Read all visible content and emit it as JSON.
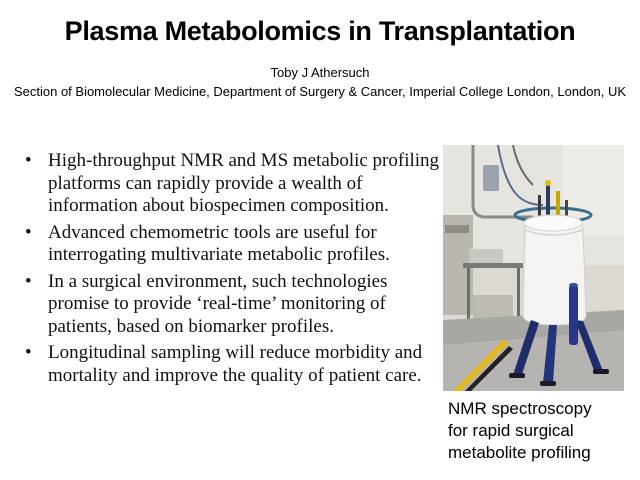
{
  "slide": {
    "title": "Plasma Metabolomics in Transplantation",
    "author": "Toby J Athersuch",
    "affiliation": "Section of Biomolecular Medicine, Department of Surgery & Cancer, Imperial College London, London, UK"
  },
  "bullets": [
    {
      "marker": "•",
      "text": "High-throughput NMR and MS metabolic profiling platforms can rapidly provide a wealth of information about biospecimen composition."
    },
    {
      "marker": "•",
      "text": "Advanced chemometric tools are useful for interrogating multivariate metabolic profiles."
    },
    {
      "marker": "•",
      "text": "In a surgical environment, such technologies promise to provide ‘real-time’ monitoring of patients, based on biomarker profiles."
    },
    {
      "marker": "•",
      "text": "Longitudinal sampling will reduce morbidity and mortality and improve the quality of patient care."
    }
  ],
  "figure": {
    "caption_lines": [
      "NMR spectroscopy",
      "for rapid surgical",
      "metabolite profiling"
    ]
  }
}
